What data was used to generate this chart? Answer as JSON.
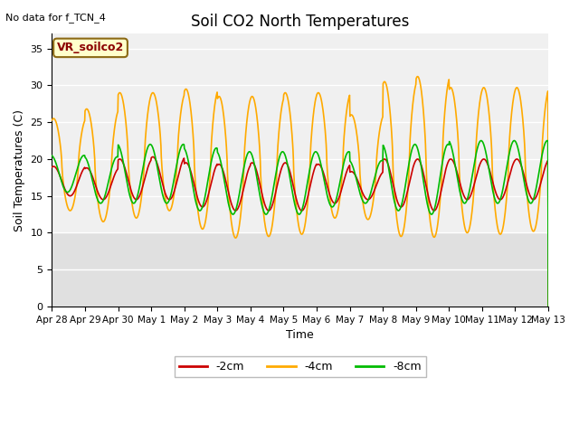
{
  "title": "Soil CO2 North Temperatures",
  "no_data_label": "No data for f_TCN_4",
  "vr_label": "VR_soilco2",
  "xlabel": "Time",
  "ylabel": "Soil Temperatures (C)",
  "ylim": [
    0,
    37
  ],
  "yticks": [
    0,
    5,
    10,
    15,
    20,
    25,
    30,
    35
  ],
  "x_tick_labels": [
    "Apr 28",
    "Apr 29",
    "Apr 30",
    "May 1",
    "May 2",
    "May 3",
    "May 4",
    "May 5",
    "May 6",
    "May 7",
    "May 8",
    "May 9",
    "May 10",
    "May 11",
    "May 12",
    "May 13"
  ],
  "color_2cm": "#cc0000",
  "color_4cm": "#ffaa00",
  "color_8cm": "#00bb00",
  "bg_plot": "#f0f0f0",
  "bg_lower": "#e0e0e0",
  "bg_figure": "#ffffff",
  "grid_color": "#d8d8d8",
  "legend_labels": [
    "-2cm",
    "-4cm",
    "-8cm"
  ]
}
